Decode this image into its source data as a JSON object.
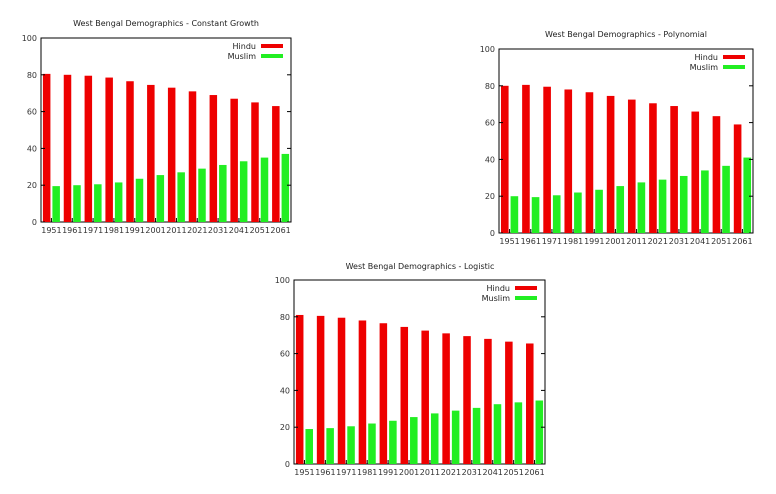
{
  "chart_data": [
    {
      "type": "bar",
      "title": "West Bengal Demographics - Constant Growth",
      "xlabel": "",
      "ylabel": "",
      "ylim": [
        0,
        100
      ],
      "yticks": [
        "0",
        "20",
        "40",
        "60",
        "80",
        "100"
      ],
      "grid": false,
      "legend_position": "top-right",
      "categories": [
        "1951",
        "1961",
        "1971",
        "1981",
        "1991",
        "2001",
        "2011",
        "2021",
        "2031",
        "2041",
        "2051",
        "2061"
      ],
      "series": [
        {
          "name": "Hindu",
          "color": "#ee0000",
          "values": [
            80.5,
            80,
            79.5,
            78.5,
            76.5,
            74.5,
            73,
            71,
            69,
            67,
            65,
            63
          ]
        },
        {
          "name": "Muslim",
          "color": "#22ee22",
          "values": [
            19.5,
            20,
            20.5,
            21.5,
            23.5,
            25.5,
            27,
            29,
            31,
            33,
            35,
            37
          ]
        }
      ]
    },
    {
      "type": "bar",
      "title": "West Bengal Demographics - Polynomial",
      "xlabel": "",
      "ylabel": "",
      "ylim": [
        0,
        100
      ],
      "yticks": [
        "0",
        "20",
        "40",
        "60",
        "80",
        "100"
      ],
      "grid": false,
      "legend_position": "top-right",
      "categories": [
        "1951",
        "1961",
        "1971",
        "1981",
        "1991",
        "2001",
        "2011",
        "2021",
        "2031",
        "2041",
        "2051",
        "2061"
      ],
      "series": [
        {
          "name": "Hindu",
          "color": "#ee0000",
          "values": [
            80,
            80.5,
            79.5,
            78,
            76.5,
            74.5,
            72.5,
            70.5,
            69,
            66,
            63.5,
            59
          ]
        },
        {
          "name": "Muslim",
          "color": "#22ee22",
          "values": [
            20,
            19.5,
            20.5,
            22,
            23.5,
            25.5,
            27.5,
            29,
            31,
            34,
            36.5,
            41
          ]
        }
      ]
    },
    {
      "type": "bar",
      "title": "West Bengal Demographics - Logistic",
      "xlabel": "",
      "ylabel": "",
      "ylim": [
        0,
        100
      ],
      "yticks": [
        "0",
        "20",
        "40",
        "60",
        "80",
        "100"
      ],
      "grid": false,
      "legend_position": "top-right",
      "categories": [
        "1951",
        "1961",
        "1971",
        "1981",
        "1991",
        "2001",
        "2011",
        "2021",
        "2031",
        "2041",
        "2051",
        "2061"
      ],
      "series": [
        {
          "name": "Hindu",
          "color": "#ee0000",
          "values": [
            81,
            80.5,
            79.5,
            78,
            76.5,
            74.5,
            72.5,
            71,
            69.5,
            68,
            66.5,
            65.5
          ]
        },
        {
          "name": "Muslim",
          "color": "#22ee22",
          "values": [
            19,
            19.5,
            20.5,
            22,
            23.5,
            25.5,
            27.5,
            29,
            30.5,
            32.5,
            33.5,
            34.5
          ]
        }
      ]
    }
  ]
}
